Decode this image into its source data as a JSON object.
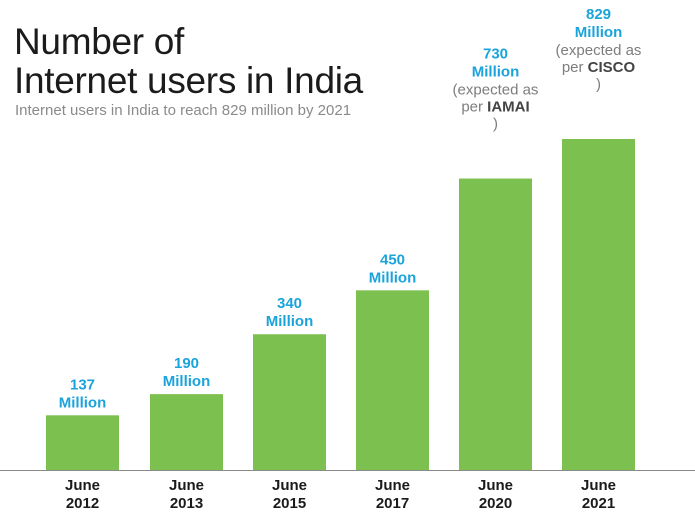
{
  "title_lines": [
    "Number of",
    "Internet users in India"
  ],
  "subtitle": "Internet users in India to reach 829 million by 2021",
  "colors": {
    "bar": "#7cc04f",
    "value_label": "#1ba3db",
    "note": "#7d7d7d",
    "note_bold": "#444444",
    "axis_label": "#1b1b1b",
    "baseline": "#8a8a8a"
  },
  "chart_data": {
    "type": "bar",
    "title": "Number of Internet users in India",
    "subtitle": "Internet users in India to reach 829 million by 2021",
    "categories": [
      [
        "June",
        "2012"
      ],
      [
        "June",
        "2013"
      ],
      [
        "June",
        "2015"
      ],
      [
        "June",
        "2017"
      ],
      [
        "June",
        "2020"
      ],
      [
        "June",
        "2021"
      ]
    ],
    "values": [
      137,
      190,
      340,
      450,
      730,
      829
    ],
    "value_labels": [
      [
        "137",
        "Million"
      ],
      [
        "190",
        "Million"
      ],
      [
        "340",
        "Million"
      ],
      [
        "450",
        "Million"
      ],
      [
        "730",
        "Million"
      ],
      [
        "829",
        "Million"
      ]
    ],
    "annotations": [
      {
        "index": 4,
        "lines": [
          [
            "(expected as",
            ""
          ],
          [
            "per ",
            "IAMAI"
          ],
          [
            ")",
            ""
          ]
        ]
      },
      {
        "index": 5,
        "lines": [
          [
            "(expected as",
            ""
          ],
          [
            "per ",
            "CISCO"
          ],
          [
            ")",
            ""
          ]
        ]
      }
    ],
    "unit": "Million",
    "ylim": [
      0,
      829
    ],
    "grid": false,
    "legend": "none"
  }
}
